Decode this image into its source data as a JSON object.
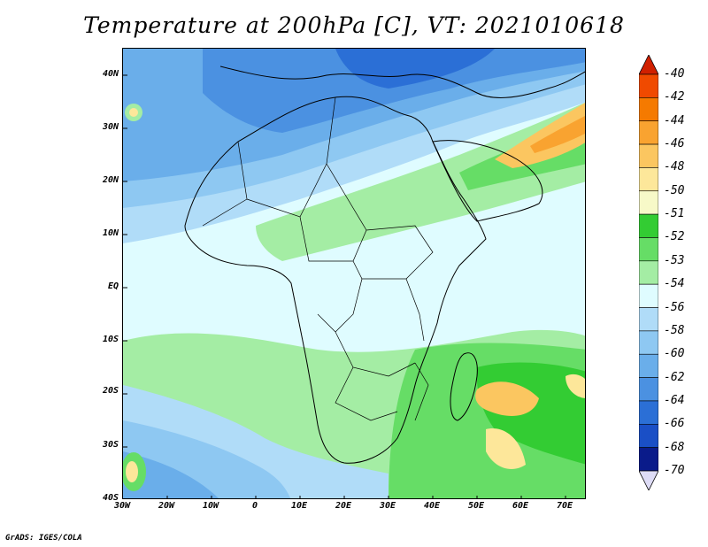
{
  "title": "Temperature at 200hPa [C], VT: 2021010618",
  "credit": "GrADS: IGES/COLA",
  "map": {
    "lon_range": [
      -30,
      75
    ],
    "lat_range": [
      -40,
      45
    ],
    "lat_labels": [
      "40N",
      "30N",
      "20N",
      "10N",
      "EQ",
      "10S",
      "20S",
      "30S",
      "40S"
    ],
    "lon_labels": [
      "30W",
      "20W",
      "10W",
      "0",
      "10E",
      "20E",
      "30E",
      "40E",
      "50E",
      "60E",
      "70E"
    ]
  },
  "colorbar": {
    "labels": [
      "-40",
      "-42",
      "-44",
      "-46",
      "-48",
      "-50",
      "-51",
      "-52",
      "-53",
      "-54",
      "-56",
      "-58",
      "-60",
      "-62",
      "-64",
      "-66",
      "-68",
      "-70"
    ],
    "colors": [
      "#e62000",
      "#f04a00",
      "#f57a00",
      "#f9a330",
      "#fbc660",
      "#fde79a",
      "#f7f9c8",
      "#33cc33",
      "#66dd66",
      "#a4eda4",
      "#dffcff",
      "#b0dcf8",
      "#8ec8f2",
      "#6aaeea",
      "#4b91e1",
      "#2b6fd6",
      "#1a4fc6",
      "#0a1b8a"
    ],
    "top_arrow_color": "#d02000",
    "bottom_arrow_color": "#dedcf6"
  }
}
